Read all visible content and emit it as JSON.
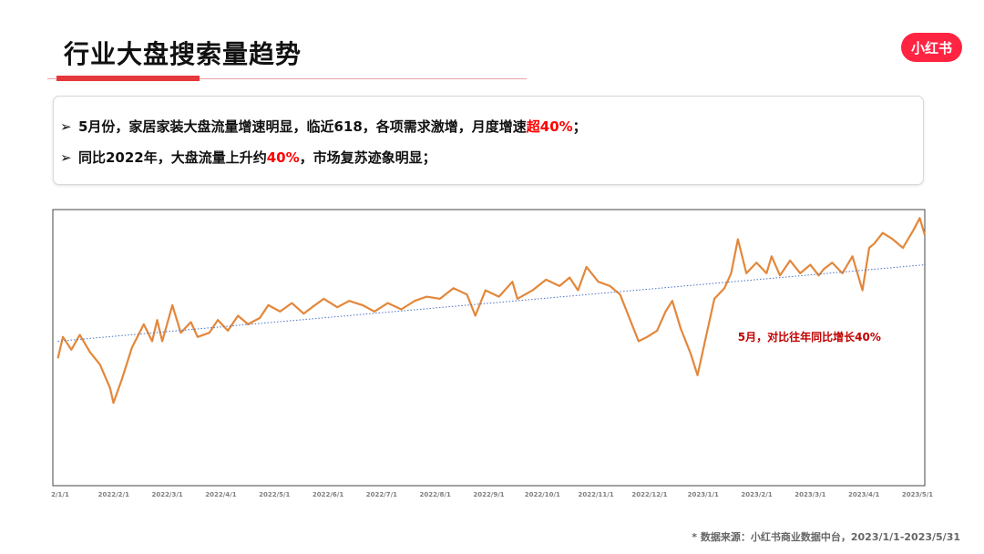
{
  "header": {
    "title": "行业大盘搜索量趋势",
    "logo_text": "小红书"
  },
  "summary": {
    "bullets": [
      {
        "marker": "➢",
        "parts": [
          {
            "text": "5月份，家居家装大盘流量增速明显，临近618，各项需求激增，月度增速",
            "highlight": false
          },
          {
            "text": "超40%",
            "highlight": true
          },
          {
            "text": "；",
            "highlight": false
          }
        ]
      },
      {
        "marker": "➢",
        "parts": [
          {
            "text": "同比2022年，大盘流量上升约",
            "highlight": false
          },
          {
            "text": "40%",
            "highlight": true
          },
          {
            "text": "，市场复苏迹象明显；",
            "highlight": false
          }
        ]
      }
    ]
  },
  "chart_data": {
    "type": "line",
    "title": "",
    "xlabel": "",
    "ylabel": "",
    "y_axis_labels": false,
    "grid": false,
    "x_tick_labels": [
      "2/1/1",
      "2022/2/1",
      "2022/3/1",
      "2022/4/1",
      "2022/5/1",
      "2022/6/1",
      "2022/7/1",
      "2022/8/1",
      "2022/9/1",
      "2022/10/1",
      "2022/11/1",
      "2022/12/1",
      "2023/1/1",
      "2023/2/1",
      "2023/3/1",
      "2023/4/1",
      "2023/5/1"
    ],
    "series": [
      {
        "kind": "actual",
        "color": "#e3873a",
        "points": [
          {
            "x": "2022/1/1",
            "y": 30
          },
          {
            "x": "2022/1/4",
            "y": 40
          },
          {
            "x": "2022/1/9",
            "y": 34
          },
          {
            "x": "2022/1/14",
            "y": 41
          },
          {
            "x": "2022/1/20",
            "y": 33
          },
          {
            "x": "2022/1/26",
            "y": 27
          },
          {
            "x": "2022/2/1",
            "y": 16
          },
          {
            "x": "2022/2/3",
            "y": 9
          },
          {
            "x": "2022/2/8",
            "y": 20
          },
          {
            "x": "2022/2/14",
            "y": 35
          },
          {
            "x": "2022/2/21",
            "y": 46
          },
          {
            "x": "2022/2/26",
            "y": 38
          },
          {
            "x": "2022/3/1",
            "y": 48
          },
          {
            "x": "2022/3/4",
            "y": 38
          },
          {
            "x": "2022/3/10",
            "y": 55
          },
          {
            "x": "2022/3/15",
            "y": 42
          },
          {
            "x": "2022/3/21",
            "y": 47
          },
          {
            "x": "2022/3/25",
            "y": 40
          },
          {
            "x": "2022/4/1",
            "y": 42
          },
          {
            "x": "2022/4/6",
            "y": 48
          },
          {
            "x": "2022/4/12",
            "y": 43
          },
          {
            "x": "2022/4/18",
            "y": 50
          },
          {
            "x": "2022/4/24",
            "y": 46
          },
          {
            "x": "2022/5/1",
            "y": 49
          },
          {
            "x": "2022/5/6",
            "y": 55
          },
          {
            "x": "2022/5/13",
            "y": 52
          },
          {
            "x": "2022/5/20",
            "y": 56
          },
          {
            "x": "2022/5/27",
            "y": 51
          },
          {
            "x": "2022/6/1",
            "y": 54
          },
          {
            "x": "2022/6/8",
            "y": 58
          },
          {
            "x": "2022/6/16",
            "y": 54
          },
          {
            "x": "2022/6/23",
            "y": 57
          },
          {
            "x": "2022/7/1",
            "y": 55
          },
          {
            "x": "2022/7/8",
            "y": 52
          },
          {
            "x": "2022/7/16",
            "y": 56
          },
          {
            "x": "2022/7/24",
            "y": 53
          },
          {
            "x": "2022/8/1",
            "y": 57
          },
          {
            "x": "2022/8/8",
            "y": 59
          },
          {
            "x": "2022/8/16",
            "y": 58
          },
          {
            "x": "2022/8/24",
            "y": 63
          },
          {
            "x": "2022/9/1",
            "y": 60
          },
          {
            "x": "2022/9/6",
            "y": 50
          },
          {
            "x": "2022/9/12",
            "y": 62
          },
          {
            "x": "2022/9/20",
            "y": 59
          },
          {
            "x": "2022/9/28",
            "y": 66
          },
          {
            "x": "2022/10/1",
            "y": 58
          },
          {
            "x": "2022/10/10",
            "y": 62
          },
          {
            "x": "2022/10/18",
            "y": 67
          },
          {
            "x": "2022/10/26",
            "y": 64
          },
          {
            "x": "2022/11/1",
            "y": 68
          },
          {
            "x": "2022/11/6",
            "y": 62
          },
          {
            "x": "2022/11/11",
            "y": 73
          },
          {
            "x": "2022/11/18",
            "y": 66
          },
          {
            "x": "2022/11/25",
            "y": 64
          },
          {
            "x": "2022/12/1",
            "y": 60
          },
          {
            "x": "2022/12/6",
            "y": 50
          },
          {
            "x": "2022/12/12",
            "y": 38
          },
          {
            "x": "2022/12/17",
            "y": 40
          },
          {
            "x": "2022/12/23",
            "y": 43
          },
          {
            "x": "2022/12/28",
            "y": 52
          },
          {
            "x": "2023/1/1",
            "y": 57
          },
          {
            "x": "2023/1/6",
            "y": 44
          },
          {
            "x": "2023/1/12",
            "y": 32
          },
          {
            "x": "2023/1/16",
            "y": 22
          },
          {
            "x": "2023/1/21",
            "y": 40
          },
          {
            "x": "2023/1/26",
            "y": 58
          },
          {
            "x": "2023/2/1",
            "y": 63
          },
          {
            "x": "2023/2/5",
            "y": 70
          },
          {
            "x": "2023/2/9",
            "y": 86
          },
          {
            "x": "2023/2/14",
            "y": 70
          },
          {
            "x": "2023/2/20",
            "y": 75
          },
          {
            "x": "2023/2/26",
            "y": 70
          },
          {
            "x": "2023/3/1",
            "y": 78
          },
          {
            "x": "2023/3/6",
            "y": 69
          },
          {
            "x": "2023/3/12",
            "y": 76
          },
          {
            "x": "2023/3/18",
            "y": 70
          },
          {
            "x": "2023/3/24",
            "y": 74
          },
          {
            "x": "2023/3/29",
            "y": 69
          },
          {
            "x": "2023/4/1",
            "y": 72
          },
          {
            "x": "2023/4/6",
            "y": 75
          },
          {
            "x": "2023/4/12",
            "y": 70
          },
          {
            "x": "2023/4/18",
            "y": 78
          },
          {
            "x": "2023/4/24",
            "y": 62
          },
          {
            "x": "2023/4/28",
            "y": 82
          },
          {
            "x": "2023/5/1",
            "y": 84
          },
          {
            "x": "2023/5/6",
            "y": 89
          },
          {
            "x": "2023/5/12",
            "y": 86
          },
          {
            "x": "2023/5/18",
            "y": 82
          },
          {
            "x": "2023/5/24",
            "y": 90
          },
          {
            "x": "2023/5/28",
            "y": 96
          },
          {
            "x": "2023/5/31",
            "y": 88
          }
        ]
      },
      {
        "kind": "trendline",
        "style": "dotted",
        "color": "#4a72c4",
        "points": [
          {
            "x": "2022/1/1",
            "y": 38
          },
          {
            "x": "2023/5/31",
            "y": 74
          }
        ]
      }
    ],
    "ylim": [
      -30,
      100
    ],
    "xlim": [
      "2021/12/29",
      "2023/5/31"
    ],
    "annotation": {
      "text": "5月，对比往年同比增长40%",
      "color": "#c00000",
      "x": "2023/2/10",
      "y": 40
    }
  },
  "footnote": "* 数据来源：小红书商业数据中台，2023/1/1-2023/5/31"
}
